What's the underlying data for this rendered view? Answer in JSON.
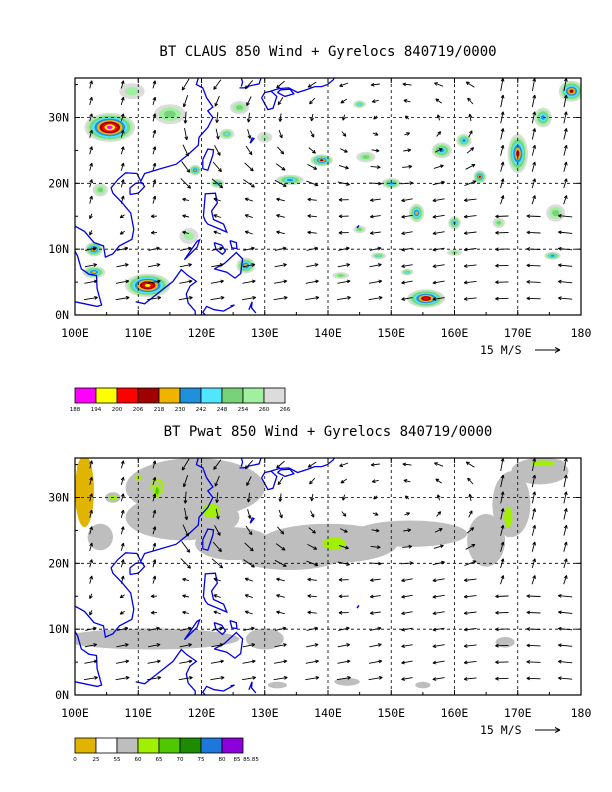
{
  "chart_data": [
    {
      "type": "heatmap",
      "title": "BT CLAUS 850 Wind + Gyrelocs 840719/0000",
      "x_ticks": [
        "100E",
        "110E",
        "120E",
        "130E",
        "140E",
        "150E",
        "160E",
        "170E",
        "180"
      ],
      "y_ticks": [
        "0N",
        "10N",
        "20N",
        "30N"
      ],
      "xlim": [
        100,
        180
      ],
      "ylim": [
        0,
        36
      ],
      "grid": true,
      "vector_reference": "15 M/S",
      "colorbar": {
        "labels": [
          "188",
          "194",
          "200",
          "206",
          "218",
          "230",
          "242",
          "248",
          "254",
          "260",
          "266"
        ],
        "colors": [
          "#ff00ff",
          "#ffff00",
          "#ff0000",
          "#a00000",
          "#f0b400",
          "#1e90dc",
          "#50e6ff",
          "#78d278",
          "#a0f0a0",
          "#dcdcdc"
        ]
      },
      "features": [
        {
          "lon": 105.5,
          "lat": 28.5,
          "r": [
            4.0,
            2.2
          ],
          "max": 0
        },
        {
          "lon": 111.5,
          "lat": 4.5,
          "r": [
            3.6,
            1.8
          ],
          "max": 1
        },
        {
          "lon": 155.5,
          "lat": 2.5,
          "r": [
            3.0,
            1.4
          ],
          "max": 2
        },
        {
          "lon": 170.0,
          "lat": 24.5,
          "r": [
            1.6,
            3.0
          ],
          "max": 3
        },
        {
          "lon": 178.5,
          "lat": 34.0,
          "r": [
            2.0,
            1.6
          ],
          "max": 3
        },
        {
          "lon": 139.0,
          "lat": 23.5,
          "r": [
            1.8,
            0.9
          ],
          "max": 3
        },
        {
          "lon": 164.0,
          "lat": 21.0,
          "r": [
            1.0,
            1.0
          ],
          "max": 3
        },
        {
          "lon": 103.0,
          "lat": 10.0,
          "r": [
            1.4,
            1.1
          ],
          "max": 3
        },
        {
          "lon": 103.0,
          "lat": 6.5,
          "r": [
            1.8,
            0.9
          ],
          "max": 4
        },
        {
          "lon": 127.0,
          "lat": 7.5,
          "r": [
            1.5,
            1.2
          ],
          "max": 4
        },
        {
          "lon": 119.0,
          "lat": 22.0,
          "r": [
            1.0,
            0.8
          ],
          "max": 4
        },
        {
          "lon": 122.5,
          "lat": 20.0,
          "r": [
            1.1,
            0.7
          ],
          "max": 5
        },
        {
          "lon": 134.0,
          "lat": 20.5,
          "r": [
            2.2,
            0.8
          ],
          "max": 5
        },
        {
          "lon": 150.0,
          "lat": 20.0,
          "r": [
            1.5,
            0.8
          ],
          "max": 5
        },
        {
          "lon": 154.0,
          "lat": 15.5,
          "r": [
            1.2,
            1.4
          ],
          "max": 4
        },
        {
          "lon": 158.0,
          "lat": 25.0,
          "r": [
            1.6,
            1.2
          ],
          "max": 5
        },
        {
          "lon": 160.0,
          "lat": 14.0,
          "r": [
            1.0,
            1.0
          ],
          "max": 5
        },
        {
          "lon": 161.5,
          "lat": 26.5,
          "r": [
            1.2,
            1.0
          ],
          "max": 5
        },
        {
          "lon": 174.0,
          "lat": 30.0,
          "r": [
            1.4,
            1.5
          ],
          "max": 5
        },
        {
          "lon": 175.5,
          "lat": 9.0,
          "r": [
            1.3,
            0.6
          ],
          "max": 5
        },
        {
          "lon": 148.0,
          "lat": 9.0,
          "r": [
            1.2,
            0.5
          ],
          "max": 6
        },
        {
          "lon": 152.5,
          "lat": 6.5,
          "r": [
            1.0,
            0.5
          ],
          "max": 6
        },
        {
          "lon": 145.0,
          "lat": 32.0,
          "r": [
            1.0,
            0.6
          ],
          "max": 6
        },
        {
          "lon": 124.0,
          "lat": 27.5,
          "r": [
            1.2,
            0.8
          ],
          "max": 6
        },
        {
          "lon": 115.0,
          "lat": 30.5,
          "r": [
            2.5,
            1.5
          ],
          "max": 7
        },
        {
          "lon": 126.0,
          "lat": 31.5,
          "r": [
            1.5,
            1.0
          ],
          "max": 7
        },
        {
          "lon": 146.0,
          "lat": 24.0,
          "r": [
            1.5,
            0.8
          ],
          "max": 7
        },
        {
          "lon": 145.0,
          "lat": 13.0,
          "r": [
            1.0,
            0.6
          ],
          "max": 7
        },
        {
          "lon": 142.0,
          "lat": 6.0,
          "r": [
            1.3,
            0.5
          ],
          "max": 7
        },
        {
          "lon": 160.0,
          "lat": 9.5,
          "r": [
            1.2,
            0.5
          ],
          "max": 7
        },
        {
          "lon": 176.0,
          "lat": 15.5,
          "r": [
            1.5,
            1.3
          ],
          "max": 7
        },
        {
          "lon": 167.0,
          "lat": 14.0,
          "r": [
            1.0,
            0.8
          ],
          "max": 7
        },
        {
          "lon": 104.0,
          "lat": 19.0,
          "r": [
            1.2,
            1.0
          ],
          "max": 7
        },
        {
          "lon": 109.0,
          "lat": 34.0,
          "r": [
            2.0,
            1.2
          ],
          "max": 8
        },
        {
          "lon": 118.0,
          "lat": 12.0,
          "r": [
            1.5,
            1.2
          ],
          "max": 8
        },
        {
          "lon": 130.0,
          "lat": 27.0,
          "r": [
            1.2,
            0.8
          ],
          "max": 8
        }
      ]
    },
    {
      "type": "heatmap",
      "title": "BT Pwat 850 Wind + Gyrelocs 840719/0000",
      "x_ticks": [
        "100E",
        "110E",
        "120E",
        "130E",
        "140E",
        "150E",
        "160E",
        "170E",
        "180"
      ],
      "y_ticks": [
        "0N",
        "10N",
        "20N",
        "30N"
      ],
      "xlim": [
        100,
        180
      ],
      "ylim": [
        0,
        36
      ],
      "grid": true,
      "vector_reference": "15 M/S",
      "colorbar": {
        "labels": [
          "0",
          "25",
          "55",
          "60",
          "65",
          "70",
          "75",
          "80",
          "85",
          "85.85"
        ],
        "colors": [
          "#e1b400",
          "#ffffff",
          "#bebebe",
          "#a0f000",
          "#50c800",
          "#1e8c00",
          "#1e78dc",
          "#8c00dc"
        ]
      },
      "features": [
        {
          "lon": 101.5,
          "lat": 31.0,
          "r": [
            1.5,
            5.5
          ],
          "max": 0
        },
        {
          "lon": 101.5,
          "lat": 34.0,
          "r": [
            1.2,
            2.2
          ],
          "max": 0
        },
        {
          "lon": 119.0,
          "lat": 31.5,
          "r": [
            11.0,
            4.5
          ],
          "max": 2
        },
        {
          "lon": 117.0,
          "lat": 27.0,
          "r": [
            9.0,
            3.5
          ],
          "max": 2
        },
        {
          "lon": 125.0,
          "lat": 23.0,
          "r": [
            6.0,
            2.5
          ],
          "max": 2
        },
        {
          "lon": 140.0,
          "lat": 23.0,
          "r": [
            11.0,
            3.0
          ],
          "max": 2
        },
        {
          "lon": 153.0,
          "lat": 24.5,
          "r": [
            9.0,
            2.0
          ],
          "max": 2
        },
        {
          "lon": 134.0,
          "lat": 21.0,
          "r": [
            8.0,
            2.0
          ],
          "max": 2
        },
        {
          "lon": 165.0,
          "lat": 23.5,
          "r": [
            3.0,
            4.0
          ],
          "max": 2
        },
        {
          "lon": 169.0,
          "lat": 29.0,
          "r": [
            3.0,
            5.0
          ],
          "max": 2
        },
        {
          "lon": 173.5,
          "lat": 34.0,
          "r": [
            4.5,
            2.0
          ],
          "max": 2
        },
        {
          "lon": 112.0,
          "lat": 8.5,
          "r": [
            14.0,
            1.6
          ],
          "max": 2
        },
        {
          "lon": 104.0,
          "lat": 24.0,
          "r": [
            2.0,
            2.0
          ],
          "max": 2
        },
        {
          "lon": 130.0,
          "lat": 8.5,
          "r": [
            3.0,
            1.6
          ],
          "max": 2
        },
        {
          "lon": 143.0,
          "lat": 2.0,
          "r": [
            2.0,
            0.6
          ],
          "max": 2
        },
        {
          "lon": 132.0,
          "lat": 1.5,
          "r": [
            1.5,
            0.5
          ],
          "max": 2
        },
        {
          "lon": 155.0,
          "lat": 1.5,
          "r": [
            1.2,
            0.5
          ],
          "max": 2
        },
        {
          "lon": 168.0,
          "lat": 8.0,
          "r": [
            1.5,
            0.8
          ],
          "max": 2
        },
        {
          "lon": 113.0,
          "lat": 31.5,
          "r": [
            2.0,
            2.5
          ],
          "max": 3
        },
        {
          "lon": 113.0,
          "lat": 31.0,
          "r": [
            0.8,
            1.5
          ],
          "max": 4
        },
        {
          "lon": 106.0,
          "lat": 30.0,
          "r": [
            1.2,
            0.8
          ],
          "max": 3
        },
        {
          "lon": 110.0,
          "lat": 33.0,
          "r": [
            1.0,
            0.8
          ],
          "max": 3
        },
        {
          "lon": 121.5,
          "lat": 28.0,
          "r": [
            2.5,
            2.0
          ],
          "max": 3
        },
        {
          "lon": 141.0,
          "lat": 23.0,
          "r": [
            3.5,
            1.7
          ],
          "max": 3
        },
        {
          "lon": 168.5,
          "lat": 27.0,
          "r": [
            1.2,
            3.0
          ],
          "max": 3
        },
        {
          "lon": 174.0,
          "lat": 35.2,
          "r": [
            3.5,
            0.8
          ],
          "max": 3
        }
      ]
    }
  ]
}
